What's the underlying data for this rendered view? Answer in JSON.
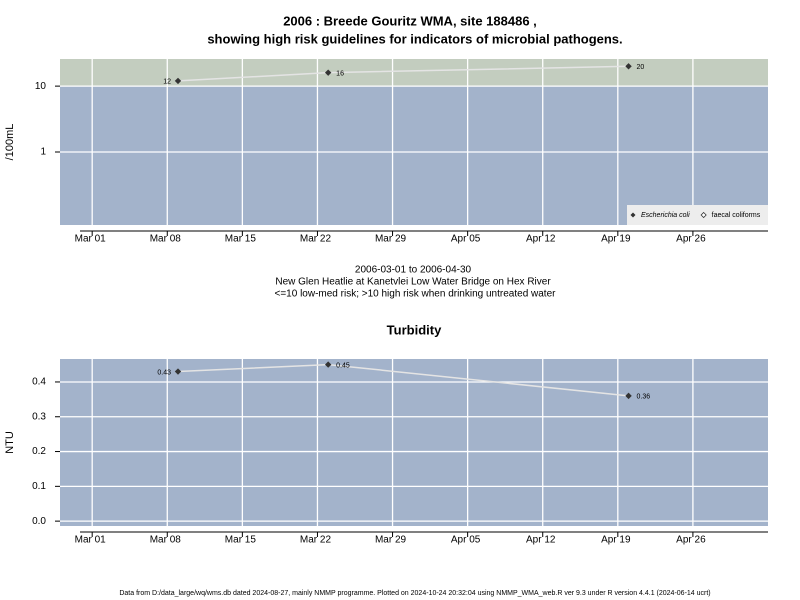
{
  "chart_data": [
    {
      "type": "line",
      "title": [
        "2006 : Breede Gouritz WMA, site 188486 ,",
        "showing high risk guidelines for indicators of microbial pathogens."
      ],
      "y_label": "/100mL",
      "log_scale": true,
      "risk_threshold": 10,
      "x": [
        "2006-03-09",
        "2006-03-23",
        "2006-04-20"
      ],
      "series": [
        {
          "name": "Escherichia coli",
          "color": "#333333",
          "values": [
            12,
            16,
            20
          ]
        },
        {
          "name": "faecal coliforms",
          "color": "#333333",
          "values": [
            null,
            null,
            null
          ]
        }
      ],
      "xlim": [
        "2006-02-26",
        "2006-05-03"
      ],
      "xticks": [
        {
          "value": "2006-03-01",
          "label": "Mar 01"
        },
        {
          "value": "2006-03-08",
          "label": "Mar 08"
        },
        {
          "value": "2006-03-15",
          "label": "Mar 15"
        },
        {
          "value": "2006-03-22",
          "label": "Mar 22"
        },
        {
          "value": "2006-03-29",
          "label": "Mar 29"
        },
        {
          "value": "2006-04-05",
          "label": "Apr 05"
        },
        {
          "value": "2006-04-12",
          "label": "Apr 12"
        },
        {
          "value": "2006-04-19",
          "label": "Apr 19"
        },
        {
          "value": "2006-04-26",
          "label": "Apr 26"
        }
      ],
      "ylim": [
        0.078,
        25.8
      ],
      "yticks": [
        1,
        10
      ],
      "grid": true,
      "legend": "bottom-right",
      "caption": [
        "2006-03-01 to 2006-04-30",
        "New Glen Heatlie at Kanetvlei Low Water Bridge on Hex River",
        "<=10 low-med risk; >10 high risk when drinking untreated water"
      ]
    },
    {
      "type": "line",
      "title": [
        "Turbidity"
      ],
      "y_label": "NTU",
      "log_scale": false,
      "x": [
        "2006-03-09",
        "2006-03-23",
        "2006-04-20"
      ],
      "series": [
        {
          "name": "Turbidity",
          "color": "#333333",
          "values": [
            0.43,
            0.45,
            0.36
          ]
        }
      ],
      "xlim": [
        "2006-02-26",
        "2006-05-03"
      ],
      "xticks": [
        {
          "value": "2006-03-01",
          "label": "Mar 01"
        },
        {
          "value": "2006-03-08",
          "label": "Mar 08"
        },
        {
          "value": "2006-03-15",
          "label": "Mar 15"
        },
        {
          "value": "2006-03-22",
          "label": "Mar 22"
        },
        {
          "value": "2006-03-29",
          "label": "Mar 29"
        },
        {
          "value": "2006-04-05",
          "label": "Apr 05"
        },
        {
          "value": "2006-04-12",
          "label": "Apr 12"
        },
        {
          "value": "2006-04-19",
          "label": "Apr 19"
        },
        {
          "value": "2006-04-26",
          "label": "Apr 26"
        }
      ],
      "ylim": [
        -0.014,
        0.466
      ],
      "yticks": [
        {
          "value": 0,
          "label": "0.0"
        },
        0.1,
        0.2,
        0.3,
        0.4
      ],
      "grid": true
    }
  ],
  "footer": "Data from D:/data_large/wq/wms.db dated 2024-08-27, mainly NMMP programme. Plotted on 2024-10-24 20:32:04 using NMMP_WMA_web.R ver 9.3 under R version 4.4.1 (2024-06-14 ucrt)"
}
